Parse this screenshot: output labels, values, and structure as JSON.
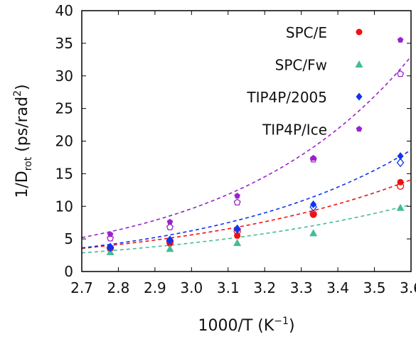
{
  "chart_data": {
    "type": "scatter",
    "title": "",
    "xlabel": "1000/T (K",
    "xlabel_sup": "−1",
    "xlabel_close": ")",
    "ylabel_main": "1/D",
    "ylabel_sub": "rot",
    "ylabel_units": " (ps/rad",
    "ylabel_sup": "2",
    "ylabel_close": ")",
    "xlim": [
      2.7,
      3.6
    ],
    "ylim": [
      0,
      40
    ],
    "xticks": [
      "2.7",
      "2.8",
      "2.9",
      "3.0",
      "3.1",
      "3.2",
      "3.3",
      "3.4",
      "3.5",
      "3.6"
    ],
    "yticks": [
      "0",
      "5",
      "10",
      "15",
      "20",
      "25",
      "30",
      "35",
      "40"
    ],
    "legend_position": "top-right",
    "grid": false,
    "fits": "dashed exponential fit curve per series",
    "series": [
      {
        "name": "SPC/E",
        "color": "#ee1111",
        "marker": "circle",
        "x": [
          2.778,
          2.941,
          3.125,
          3.333,
          3.571
        ],
        "y": [
          3.6,
          4.3,
          5.5,
          8.7,
          13.7
        ],
        "open_y": [
          3.6,
          4.5,
          6.2,
          8.8,
          13.1
        ],
        "fit": {
          "a": 3.55,
          "b": 1.53
        }
      },
      {
        "name": "SPC/Fw",
        "color": "#44bb99",
        "marker": "triangle",
        "x": [
          2.778,
          2.941,
          3.125,
          3.333,
          3.571
        ],
        "y": [
          3.0,
          3.5,
          4.4,
          5.9,
          9.8
        ],
        "open_y": [],
        "fit": {
          "a": 2.86,
          "b": 1.42
        }
      },
      {
        "name": "TIP4P/2005",
        "color": "#1133ee",
        "marker": "diamond",
        "x": [
          2.778,
          2.941,
          3.125,
          3.333,
          3.571
        ],
        "y": [
          3.7,
          4.8,
          6.6,
          10.3,
          17.7
        ],
        "open_y": [
          3.7,
          4.8,
          6.5,
          9.9,
          16.7
        ],
        "fit": {
          "a": 3.62,
          "b": 1.82
        }
      },
      {
        "name": "TIP4P/Ice",
        "color": "#9922cc",
        "marker": "pentagon",
        "x": [
          2.778,
          2.941,
          3.125,
          3.333,
          3.571
        ],
        "y": [
          5.7,
          7.6,
          11.6,
          17.4,
          35.5
        ],
        "open_y": [
          5.1,
          6.8,
          10.6,
          17.2,
          30.3
        ],
        "fit": {
          "a": 5.21,
          "b": 2.05
        }
      }
    ]
  }
}
